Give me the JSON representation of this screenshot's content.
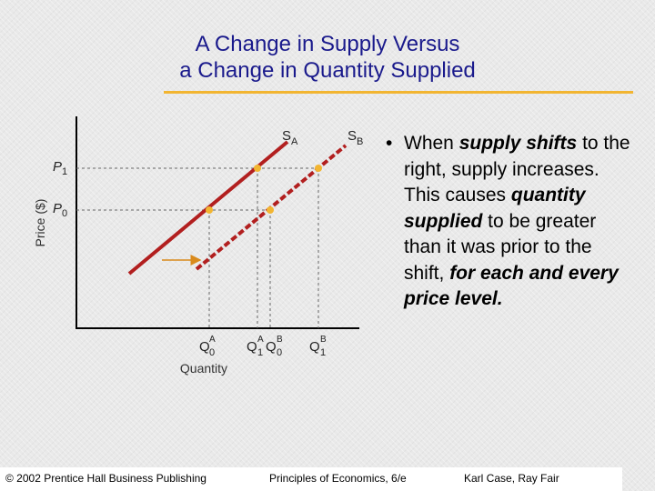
{
  "slide": {
    "title_line1": "A Change in Supply Versus",
    "title_line2": "a Change in Quantity Supplied",
    "accent_color": "#f2b531",
    "title_color": "#1a1a8c"
  },
  "bullet": {
    "parts": [
      {
        "text": "When ",
        "style": "normal"
      },
      {
        "text": "supply shifts",
        "style": "bold-italic"
      },
      {
        "text": " to the right, supply increases. This causes ",
        "style": "normal"
      },
      {
        "text": "quantity supplied",
        "style": "bold-italic"
      },
      {
        "text": " to be greater than it was prior to the shift, ",
        "style": "normal"
      },
      {
        "text": "for each and every price level.",
        "style": "bold-italic"
      }
    ]
  },
  "graph": {
    "y_axis_label": "Price ($)",
    "x_axis_label": "Quantity",
    "price_labels": [
      {
        "main": "P",
        "sub": "1"
      },
      {
        "main": "P",
        "sub": "0"
      }
    ],
    "quantity_labels": [
      {
        "main": "Q",
        "sup": "A",
        "sub": "0"
      },
      {
        "main": "Q",
        "sup": "A",
        "sub": "1"
      },
      {
        "main": "Q",
        "sup": "B",
        "sub": "0"
      },
      {
        "main": "Q",
        "sup": "B",
        "sub": "1"
      }
    ],
    "curves": [
      {
        "main": "S",
        "sub": "A",
        "color": "#b21f1f",
        "style": "solid"
      },
      {
        "main": "S",
        "sub": "B",
        "color": "#b21f1f",
        "style": "dashed"
      }
    ],
    "point_color": "#f2b531",
    "shift_arrow_color": "#d98a1c"
  },
  "footer": {
    "left": "© 2002 Prentice Hall Business Publishing",
    "center": "Principles of Economics, 6/e",
    "right": "Karl Case, Ray Fair"
  }
}
